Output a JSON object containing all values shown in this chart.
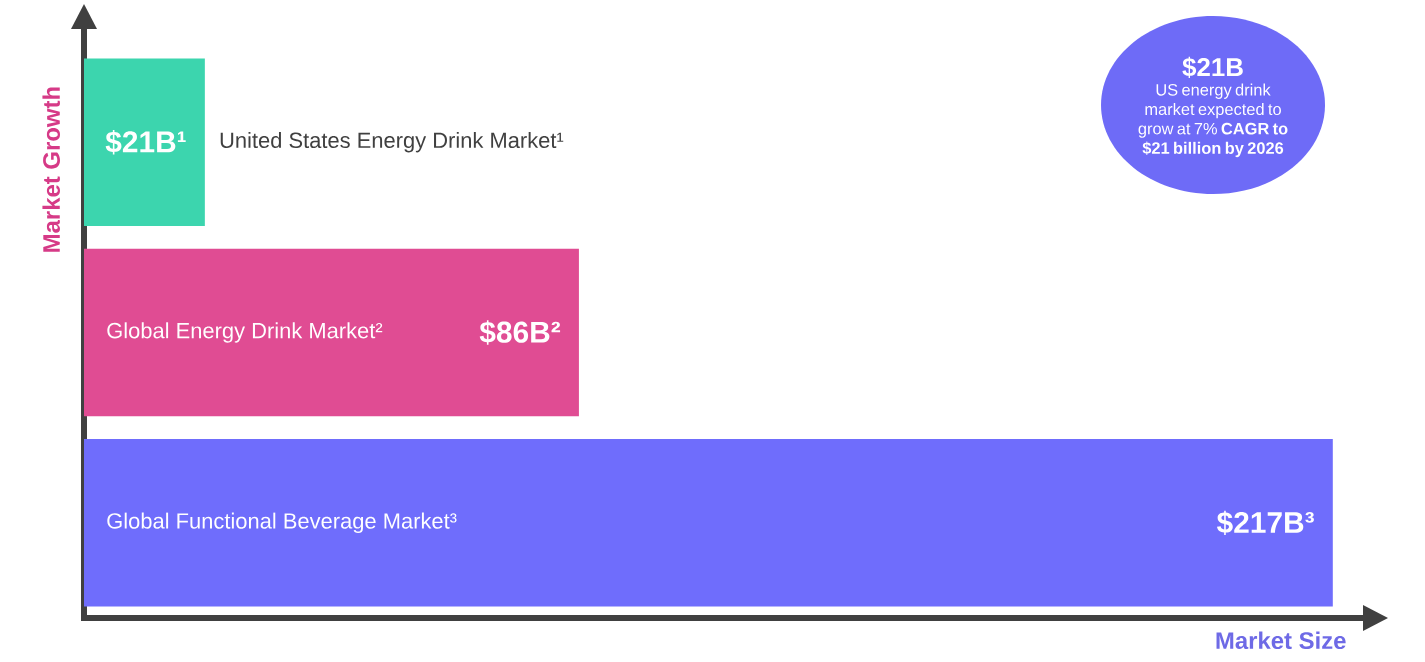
{
  "chart_data": {
    "type": "bar",
    "orientation": "horizontal",
    "xlabel": "Market Size",
    "ylabel": "Market Growth",
    "categories": [
      "United States Energy Drink Market¹",
      "Global Energy Drink Market²",
      "Global Functional Beverage Market³"
    ],
    "values": [
      21,
      86,
      217
    ],
    "colors": [
      "#3cd5ae",
      "#e04c93",
      "#6f6dfc"
    ],
    "value_labels": [
      "$21B¹",
      "$86B²",
      "$217B³"
    ],
    "tick_labels": false,
    "annotations": [
      "$21B",
      "US energy drink market expected to grow at 7% **CAGR to $21 billion by 2026**"
    ]
  }
}
